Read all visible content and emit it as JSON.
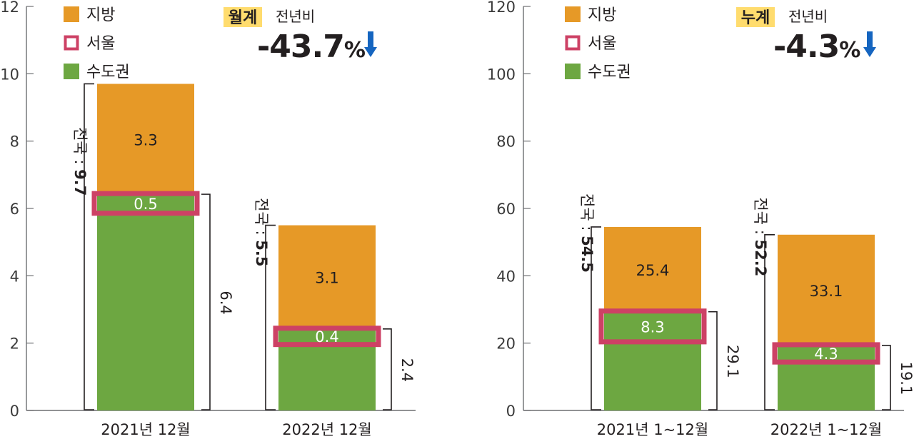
{
  "chart_data": [
    {
      "type": "bar",
      "stacked": true,
      "ylim": [
        0,
        12
      ],
      "yticks": [
        "0",
        "2",
        "4",
        "6",
        "8",
        "10",
        "12"
      ],
      "categories": [
        "2021년 12월",
        "2022년 12월"
      ],
      "series": [
        {
          "name": "수도권",
          "values": [
            6.4,
            2.4
          ],
          "color": "#6da741"
        },
        {
          "name": "지방",
          "values": [
            3.3,
            3.1
          ],
          "color": "#e69927"
        }
      ],
      "seoul": {
        "name": "서울",
        "values": [
          0.5,
          0.4
        ],
        "labels": [
          "0.5",
          "0.4"
        ],
        "color": "#cd4165"
      },
      "segment_labels": [
        [
          "3.3",
          "3.1"
        ]
      ],
      "capital_labels": [
        "6.4",
        "2.4"
      ],
      "total_labels": [
        {
          "prefix": "전국 : ",
          "value": "9.7"
        },
        {
          "prefix": "전국 : ",
          "value": "5.5"
        }
      ],
      "legend": {
        "placement": "top-left",
        "items": [
          "지방",
          "서울",
          "수도권"
        ]
      },
      "annotation": {
        "badge": "월계",
        "text": "전년비",
        "value": "-43.7",
        "unit": "%",
        "direction": "down"
      }
    },
    {
      "type": "bar",
      "stacked": true,
      "ylim": [
        0,
        120
      ],
      "yticks": [
        "0",
        "20",
        "40",
        "60",
        "80",
        "100",
        "120"
      ],
      "categories": [
        "2021년 1~12월",
        "2022년 1~12월"
      ],
      "series": [
        {
          "name": "수도권",
          "values": [
            29.1,
            19.1
          ],
          "color": "#6da741"
        },
        {
          "name": "지방",
          "values": [
            25.4,
            33.1
          ],
          "color": "#e69927"
        }
      ],
      "seoul": {
        "name": "서울",
        "values": [
          8.3,
          4.3
        ],
        "labels": [
          "8.3",
          "4.3"
        ],
        "color": "#cd4165"
      },
      "segment_labels": [
        [
          "25.4",
          "33.1"
        ]
      ],
      "capital_labels": [
        "29.1",
        "19.1"
      ],
      "total_labels": [
        {
          "prefix": "전국 : ",
          "value": "54.5"
        },
        {
          "prefix": "전국 : ",
          "value": "52.2"
        }
      ],
      "legend": {
        "placement": "top-left",
        "items": [
          "지방",
          "서울",
          "수도권"
        ]
      },
      "annotation": {
        "badge": "누계",
        "text": "전년비",
        "value": "-4.3",
        "unit": "%",
        "direction": "down"
      }
    }
  ],
  "colors": {
    "region": "#e69927",
    "capital": "#6da741",
    "seoul": "#cd4165",
    "badge": "#ffdc6e",
    "arrow": "#1565c0",
    "axis": "#6d6e71",
    "text": "#231f20"
  }
}
